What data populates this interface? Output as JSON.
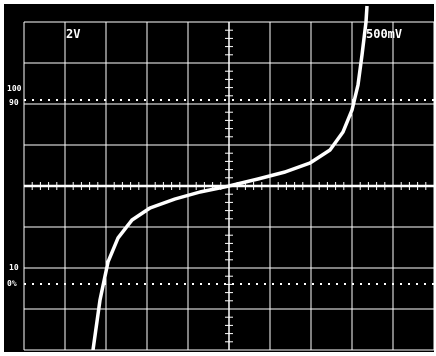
{
  "screen": {
    "top_left_label": "2V",
    "top_right_label": "500mV",
    "left_markers": [
      "100",
      "90",
      "10",
      "0%"
    ]
  }
}
